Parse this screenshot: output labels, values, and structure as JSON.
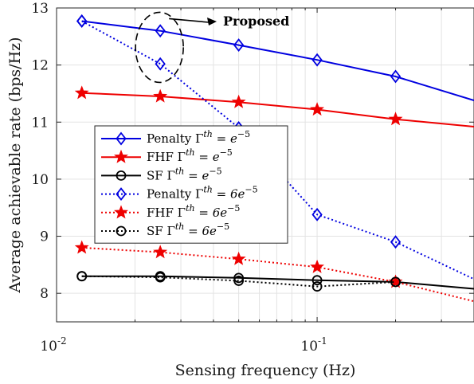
{
  "chart_data": {
    "type": "line",
    "xlabel": "Sensing frequency (Hz)",
    "ylabel": "Average achievable rate (bps/Hz)",
    "xscale": "log",
    "xlim": [
      0.01,
      0.4
    ],
    "ylim": [
      7.5,
      13
    ],
    "x_ticks": [
      {
        "value": 0.01,
        "base": "10",
        "exp": "-2"
      },
      {
        "value": 0.1,
        "base": "10",
        "exp": "-1"
      }
    ],
    "y_ticks": [
      "8",
      "9",
      "10",
      "11",
      "12",
      "13"
    ],
    "grid": true,
    "legend_position": "center-left",
    "annotation": {
      "text": "Proposed"
    },
    "series": [
      {
        "name": "Penalty Γth = e−5",
        "legend": {
          "method": "Penalty",
          "gexp": "th",
          "rhs": "= e",
          "rexp": "−5"
        },
        "color": "#0000e0",
        "dash": "solid",
        "marker": "diamond",
        "x": [
          0.0125,
          0.025,
          0.05,
          0.1,
          0.2,
          0.4
        ],
        "y": [
          12.77,
          12.6,
          12.35,
          12.09,
          11.8,
          11.38
        ]
      },
      {
        "name": "FHF Γth = e−5",
        "legend": {
          "method": "FHF",
          "gexp": "th",
          "rhs": "= e",
          "rexp": "−5"
        },
        "color": "#ee0000",
        "dash": "solid",
        "marker": "star",
        "x": [
          0.0125,
          0.025,
          0.05,
          0.1,
          0.2,
          0.4
        ],
        "y": [
          11.51,
          11.45,
          11.35,
          11.22,
          11.05,
          10.92
        ]
      },
      {
        "name": "SF Γth = e−5",
        "legend": {
          "method": "SF",
          "gexp": "th",
          "rhs": "= e",
          "rexp": "−5"
        },
        "color": "#000000",
        "dash": "solid",
        "marker": "circle",
        "x": [
          0.0125,
          0.025,
          0.05,
          0.1,
          0.2,
          0.4
        ],
        "y": [
          8.3,
          8.3,
          8.27,
          8.23,
          8.2,
          8.08
        ]
      },
      {
        "name": "Penalty Γth = 6e−5",
        "legend": {
          "method": "Penalty",
          "gexp": "th",
          "rhs": "= 6e",
          "rexp": "−5"
        },
        "color": "#0000e0",
        "dash": "dotted",
        "marker": "diamond",
        "x": [
          0.0125,
          0.025,
          0.05,
          0.1,
          0.2,
          0.4
        ],
        "y": [
          12.77,
          12.02,
          10.9,
          9.38,
          8.9,
          8.25
        ]
      },
      {
        "name": "FHF Γth = 6e−5",
        "legend": {
          "method": "FHF",
          "gexp": "th",
          "rhs": "= 6e",
          "rexp": "−5"
        },
        "color": "#ee0000",
        "dash": "dotted",
        "marker": "star",
        "x": [
          0.0125,
          0.025,
          0.05,
          0.1,
          0.2,
          0.4
        ],
        "y": [
          8.8,
          8.72,
          8.6,
          8.46,
          8.2,
          7.86
        ]
      },
      {
        "name": "SF Γth = 6e−5",
        "legend": {
          "method": "SF",
          "gexp": "th",
          "rhs": "= 6e",
          "rexp": "−5"
        },
        "color": "#000000",
        "dash": "dotted",
        "marker": "circle",
        "x": [
          0.0125,
          0.025,
          0.05,
          0.1,
          0.2
        ],
        "y": [
          8.3,
          8.28,
          8.22,
          8.12,
          8.2
        ]
      }
    ]
  }
}
